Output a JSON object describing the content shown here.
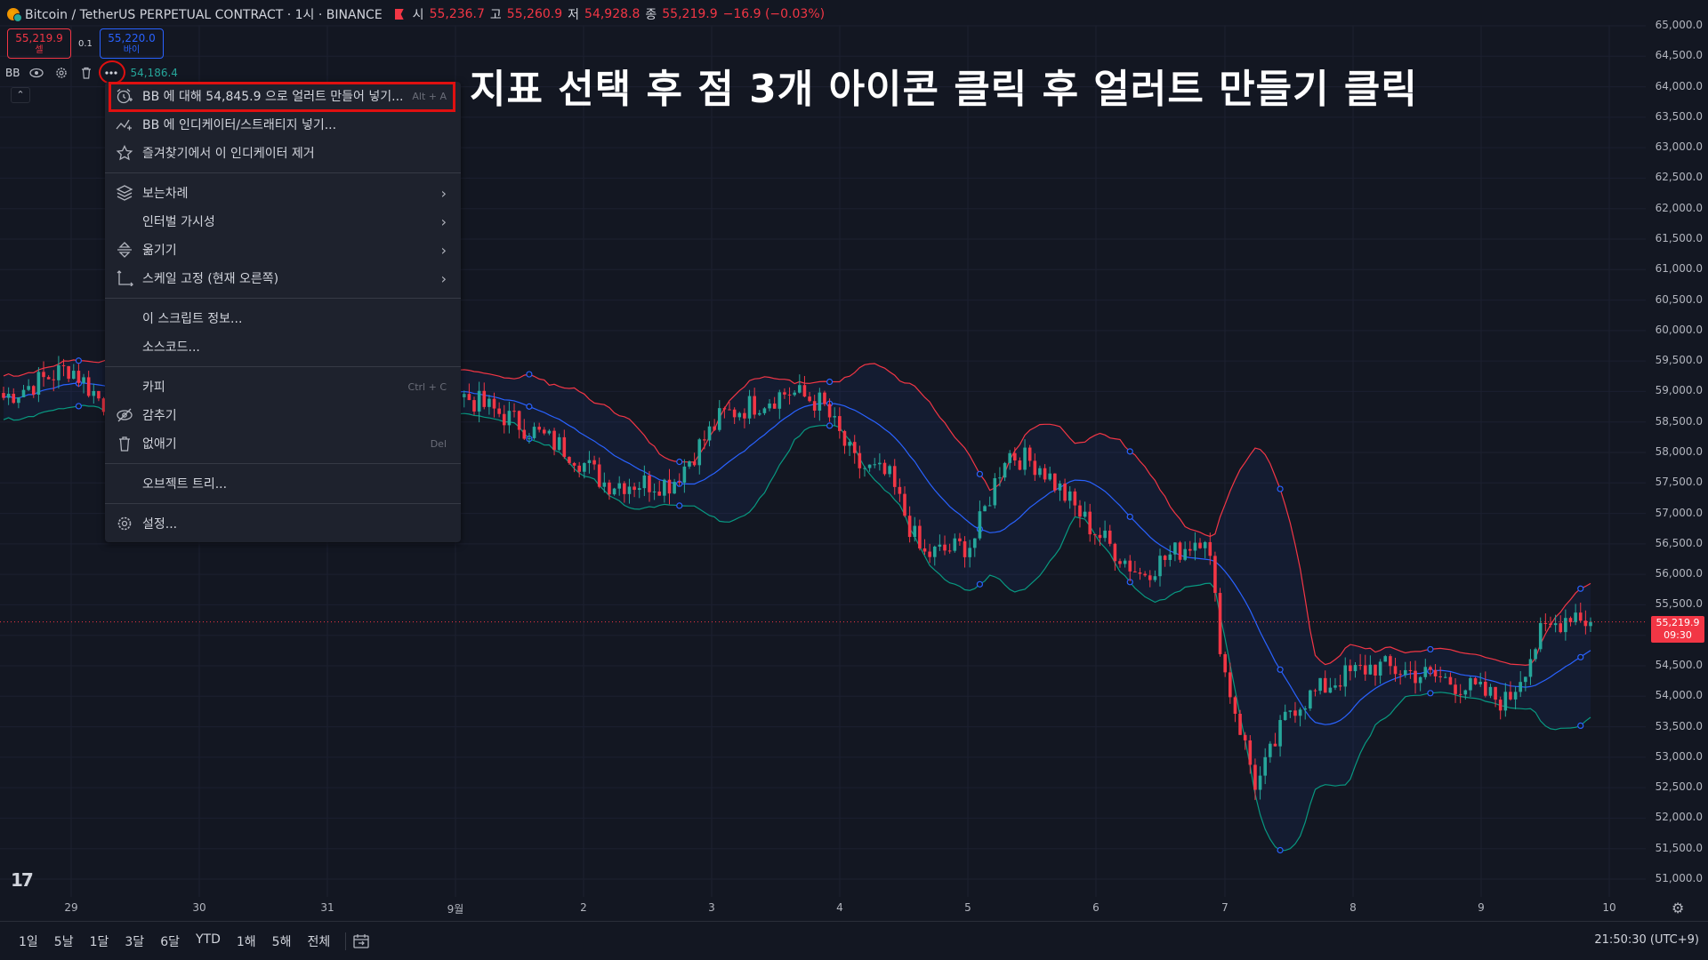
{
  "legend": {
    "symbol_icon": "bitcoin-icon",
    "title": "Bitcoin / TetherUS PERPETUAL CONTRACT · 1시 · BINANCE",
    "open_label": "시",
    "open": "55,236.7",
    "high_label": "고",
    "high": "55,260.9",
    "low_label": "저",
    "low": "54,928.8",
    "close_label": "종",
    "close": "55,219.9",
    "change": "−16.9 (−0.03%)"
  },
  "trade": {
    "sell_price": "55,219.9",
    "sell_label": "셀",
    "buy_price": "55,220.0",
    "buy_label": "바이",
    "spread": "0.1"
  },
  "indicator": {
    "name": "BB",
    "value": "54,186.4"
  },
  "annotation": "지표 선택 후 점 3개 아이콘 클릭 후 얼러트 만들기 클릭",
  "menu": {
    "add_alert": "BB 에 대해 54,845.9 으로 얼러트 만들어 넣기...",
    "add_alert_shortcut": "Alt + A",
    "add_indicator": "BB 에 인디케이터/스트래티지 넣기...",
    "remove_favorite": "즐겨찾기에서 이 인디케이터 제거",
    "order": "보는차례",
    "interval_visibility": "인터벌 가시성",
    "move": "옮기기",
    "pin_scale": "스케일 고정 (현재 오른쪽)",
    "script_info": "이 스크립트 정보...",
    "source_code": "소스코드...",
    "copy": "카피",
    "copy_shortcut": "Ctrl + C",
    "hide": "감추기",
    "remove": "없애기",
    "remove_shortcut": "Del",
    "object_tree": "오브젝트 트리...",
    "settings": "설정..."
  },
  "price_axis": {
    "labels": [
      "65,000.0",
      "64,500.0",
      "64,000.0",
      "63,500.0",
      "63,000.0",
      "62,500.0",
      "62,000.0",
      "61,500.0",
      "61,000.0",
      "60,500.0",
      "60,000.0",
      "59,500.0",
      "59,000.0",
      "58,500.0",
      "58,000.0",
      "57,500.0",
      "57,000.0",
      "56,500.0",
      "56,000.0",
      "55,500.0",
      "55,000.0",
      "54,500.0",
      "54,000.0",
      "53,500.0",
      "53,000.0",
      "52,500.0",
      "52,000.0",
      "51,500.0",
      "51,000.0"
    ],
    "last_price": "55,219.9",
    "countdown": "09:30"
  },
  "time_axis": {
    "labels": [
      "29",
      "30",
      "31",
      "9월",
      "2",
      "3",
      "4",
      "5",
      "6",
      "7",
      "8",
      "9",
      "10"
    ]
  },
  "bottom_bar": {
    "ranges": [
      "1일",
      "5날",
      "1달",
      "3달",
      "6달",
      "YTD",
      "1해",
      "5해",
      "전체"
    ],
    "clock": "21:50:30 (UTC+9)"
  },
  "colors": {
    "bg": "#131722",
    "up": "#26a69a",
    "down": "#f23645",
    "bb_upper": "#f23645",
    "bb_basis": "#2962ff",
    "bb_lower": "#089981",
    "accent_red": "#e01010"
  },
  "chart_data": {
    "type": "candlestick",
    "interval": "1h",
    "ylim": [
      51000,
      65000
    ],
    "last": 55219.9,
    "waypoints": [
      {
        "t": 0.0,
        "price": 58900
      },
      {
        "t": 0.04,
        "price": 59400
      },
      {
        "t": 0.06,
        "price": 58800
      },
      {
        "t": 0.27,
        "price": 59000
      },
      {
        "t": 0.3,
        "price": 58600
      },
      {
        "t": 0.34,
        "price": 58000
      },
      {
        "t": 0.36,
        "price": 57500
      },
      {
        "t": 0.4,
        "price": 57500
      },
      {
        "t": 0.43,
        "price": 58600
      },
      {
        "t": 0.47,
        "price": 59000
      },
      {
        "t": 0.49,
        "price": 58800
      },
      {
        "t": 0.51,
        "price": 57800
      },
      {
        "t": 0.53,
        "price": 57600
      },
      {
        "t": 0.55,
        "price": 56300
      },
      {
        "t": 0.58,
        "price": 56500
      },
      {
        "t": 0.6,
        "price": 58000
      },
      {
        "t": 0.62,
        "price": 57800
      },
      {
        "t": 0.65,
        "price": 56800
      },
      {
        "t": 0.68,
        "price": 56000
      },
      {
        "t": 0.71,
        "price": 56500
      },
      {
        "t": 0.72,
        "price": 56700
      },
      {
        "t": 0.73,
        "price": 54500
      },
      {
        "t": 0.75,
        "price": 52500
      },
      {
        "t": 0.77,
        "price": 53800
      },
      {
        "t": 0.8,
        "price": 54300
      },
      {
        "t": 0.82,
        "price": 54500
      },
      {
        "t": 0.86,
        "price": 54300
      },
      {
        "t": 0.9,
        "price": 53900
      },
      {
        "t": 0.92,
        "price": 55000
      },
      {
        "t": 0.94,
        "price": 55400
      },
      {
        "t": 0.95,
        "price": 55200
      }
    ]
  }
}
